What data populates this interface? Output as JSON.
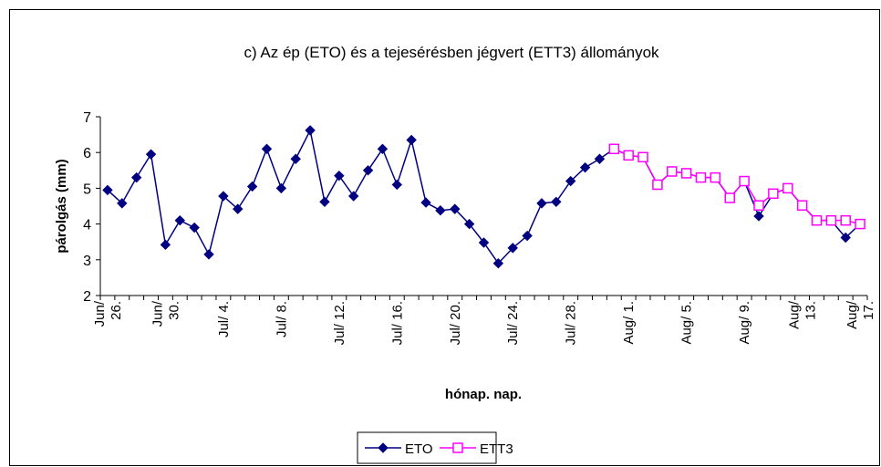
{
  "chart_data": {
    "type": "line",
    "title": "c) Az ép (ETO) és a tejesérésben jégvert (ETT3) állományok",
    "y_label": "párolgás (mm)",
    "x_label": "hónap. nap.",
    "categories": [
      "Jun/ 26.",
      null,
      null,
      null,
      "Jun/ 30.",
      null,
      null,
      null,
      "Jul/ 4.",
      null,
      null,
      null,
      "Jul/ 8.",
      null,
      null,
      null,
      "Jul/ 12.",
      null,
      null,
      null,
      "Jul/ 16.",
      null,
      null,
      null,
      "Jul/ 20.",
      null,
      null,
      null,
      "Jul/ 24.",
      null,
      null,
      null,
      "Jul/ 28.",
      null,
      null,
      null,
      "Aug/ 1.",
      null,
      null,
      null,
      "Aug/ 5.",
      null,
      null,
      null,
      "Aug/ 9.",
      null,
      null,
      null,
      "Aug/ 13.",
      null,
      null,
      null,
      "Aug/ 17."
    ],
    "series": [
      {
        "name": "ETO",
        "color": "#000080",
        "marker": "diamond",
        "values": [
          4.95,
          4.58,
          5.3,
          5.95,
          3.42,
          4.1,
          3.9,
          3.15,
          4.78,
          4.42,
          5.05,
          6.1,
          5.0,
          5.82,
          6.62,
          4.62,
          5.35,
          4.78,
          5.5,
          6.1,
          5.1,
          6.35,
          4.6,
          4.38,
          4.42,
          4.0,
          3.48,
          2.9,
          3.33,
          3.67,
          4.58,
          4.62,
          5.2,
          5.58,
          5.82,
          6.1,
          5.92,
          5.87,
          5.1,
          5.47,
          5.42,
          5.3,
          5.3,
          4.73,
          5.2,
          4.22,
          4.85,
          5.0,
          4.52,
          4.1,
          4.1,
          3.62,
          4.0
        ]
      },
      {
        "name": "ETT3",
        "color": "#ff00ff",
        "marker": "square",
        "values": [
          null,
          null,
          null,
          null,
          null,
          null,
          null,
          null,
          null,
          null,
          null,
          null,
          null,
          null,
          null,
          null,
          null,
          null,
          null,
          null,
          null,
          null,
          null,
          null,
          null,
          null,
          null,
          null,
          null,
          null,
          null,
          null,
          null,
          null,
          null,
          6.1,
          5.92,
          5.87,
          5.1,
          5.47,
          5.42,
          5.3,
          5.3,
          4.73,
          5.2,
          4.52,
          4.85,
          5.0,
          4.52,
          4.1,
          4.1,
          4.1,
          4.0
        ]
      }
    ],
    "ylim": [
      2,
      7
    ],
    "yticks": [
      2,
      3,
      4,
      5,
      6,
      7
    ],
    "grid": false,
    "legend": "bottom"
  }
}
